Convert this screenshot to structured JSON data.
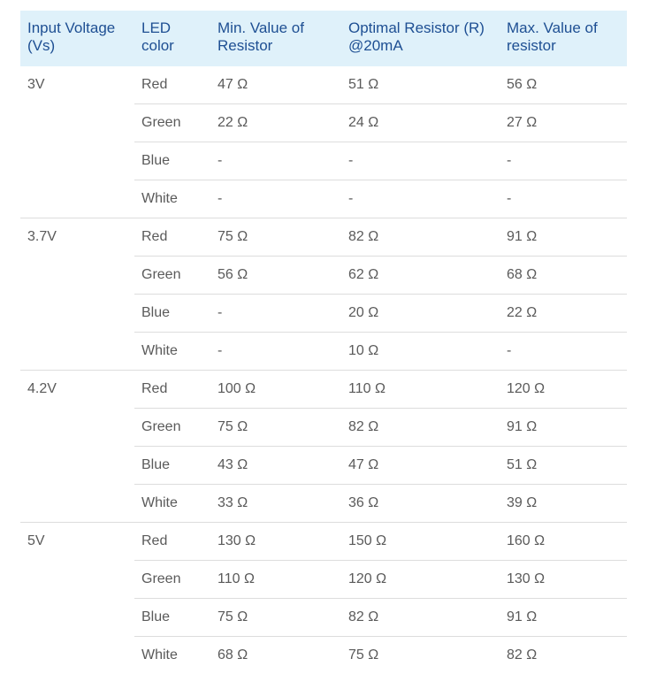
{
  "table": {
    "headers": [
      "Input Voltage (Vs)",
      "LED color",
      "Min. Value of Resistor",
      "Optimal Resistor (R) @20mA",
      "Max. Value of resistor"
    ],
    "groups": [
      {
        "voltage": "3V",
        "rows": [
          {
            "color": "Red",
            "min": "47 Ω",
            "optimal": "51 Ω",
            "max": "56 Ω"
          },
          {
            "color": "Green",
            "min": "22 Ω",
            "optimal": "24 Ω",
            "max": "27 Ω"
          },
          {
            "color": "Blue",
            "min": "-",
            "optimal": "-",
            "max": "-"
          },
          {
            "color": "White",
            "min": "-",
            "optimal": "-",
            "max": "-"
          }
        ]
      },
      {
        "voltage": "3.7V",
        "rows": [
          {
            "color": "Red",
            "min": "75 Ω",
            "optimal": "82 Ω",
            "max": "91 Ω"
          },
          {
            "color": "Green",
            "min": "56 Ω",
            "optimal": "62 Ω",
            "max": "68 Ω"
          },
          {
            "color": "Blue",
            "min": "-",
            "optimal": "20 Ω",
            "max": "22 Ω"
          },
          {
            "color": "White",
            "min": "-",
            "optimal": "10 Ω",
            "max": "-"
          }
        ]
      },
      {
        "voltage": "4.2V",
        "rows": [
          {
            "color": "Red",
            "min": "100 Ω",
            "optimal": "110 Ω",
            "max": "120 Ω"
          },
          {
            "color": "Green",
            "min": "75 Ω",
            "optimal": "82 Ω",
            "max": "91 Ω"
          },
          {
            "color": "Blue",
            "min": "43 Ω",
            "optimal": "47 Ω",
            "max": "51 Ω"
          },
          {
            "color": "White",
            "min": "33 Ω",
            "optimal": "36 Ω",
            "max": "39 Ω"
          }
        ]
      },
      {
        "voltage": "5V",
        "rows": [
          {
            "color": "Red",
            "min": "130 Ω",
            "optimal": "150 Ω",
            "max": "160 Ω"
          },
          {
            "color": "Green",
            "min": "110 Ω",
            "optimal": "120 Ω",
            "max": "130 Ω"
          },
          {
            "color": "Blue",
            "min": "75 Ω",
            "optimal": "82 Ω",
            "max": "91 Ω"
          },
          {
            "color": "White",
            "min": "68 Ω",
            "optimal": "75 Ω",
            "max": "82 Ω"
          }
        ]
      }
    ]
  }
}
